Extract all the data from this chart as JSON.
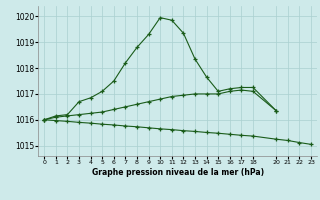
{
  "title": "Graphe pression niveau de la mer (hPa)",
  "background_color": "#ceeaea",
  "grid_color": "#aad0d0",
  "line_color": "#1a5c1a",
  "xlim": [
    -0.5,
    23.5
  ],
  "ylim": [
    1014.6,
    1020.4
  ],
  "yticks": [
    1015,
    1016,
    1017,
    1018,
    1019,
    1020
  ],
  "xticks": [
    0,
    1,
    2,
    3,
    4,
    5,
    6,
    7,
    8,
    9,
    10,
    11,
    12,
    13,
    14,
    15,
    16,
    17,
    18,
    20,
    21,
    22,
    23
  ],
  "series": [
    {
      "x": [
        0,
        1,
        2,
        3,
        4,
        5,
        6,
        7,
        8,
        9,
        10,
        11,
        12,
        13,
        14,
        15,
        16,
        17,
        18,
        20
      ],
      "y": [
        1016.0,
        1016.15,
        1016.2,
        1016.7,
        1016.85,
        1017.1,
        1017.5,
        1018.2,
        1018.8,
        1019.3,
        1019.95,
        1019.85,
        1019.35,
        1018.35,
        1017.65,
        1017.1,
        1017.2,
        1017.25,
        1017.25,
        1016.35
      ]
    },
    {
      "x": [
        0,
        1,
        2,
        3,
        4,
        5,
        6,
        7,
        8,
        9,
        10,
        11,
        12,
        13,
        14,
        15,
        16,
        17,
        18,
        20
      ],
      "y": [
        1016.0,
        1016.1,
        1016.15,
        1016.2,
        1016.25,
        1016.3,
        1016.4,
        1016.5,
        1016.6,
        1016.7,
        1016.8,
        1016.9,
        1016.95,
        1017.0,
        1017.0,
        1017.0,
        1017.1,
        1017.15,
        1017.1,
        1016.35
      ]
    },
    {
      "x": [
        0,
        1,
        2,
        3,
        4,
        5,
        6,
        7,
        8,
        9,
        10,
        11,
        12,
        13,
        14,
        15,
        16,
        17,
        18,
        20,
        21,
        22,
        23
      ],
      "y": [
        1016.0,
        1015.97,
        1015.94,
        1015.9,
        1015.87,
        1015.83,
        1015.8,
        1015.76,
        1015.73,
        1015.69,
        1015.65,
        1015.62,
        1015.58,
        1015.55,
        1015.51,
        1015.48,
        1015.44,
        1015.4,
        1015.37,
        1015.25,
        1015.2,
        1015.12,
        1015.05
      ]
    }
  ]
}
